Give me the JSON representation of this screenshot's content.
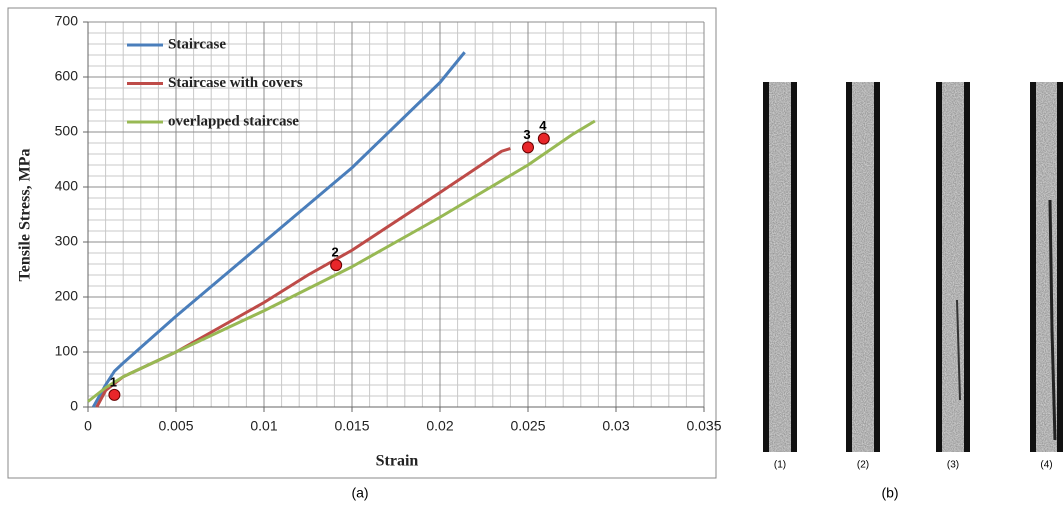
{
  "chart_data": {
    "type": "line",
    "xlabel": "Strain",
    "ylabel": "Tensile Stress, MPa",
    "xlim": [
      0,
      0.035
    ],
    "ylim": [
      0,
      700
    ],
    "xticks": [
      0,
      0.005,
      0.01,
      0.015,
      0.02,
      0.025,
      0.03,
      0.035
    ],
    "yticks": [
      0,
      100,
      200,
      300,
      400,
      500,
      600,
      700
    ],
    "grid": true,
    "legend": "upper-left",
    "series": [
      {
        "name": "Staircase",
        "color": "#4a7ebb",
        "x": [
          0.0003,
          0.001,
          0.0015,
          0.002,
          0.005,
          0.01,
          0.015,
          0.02,
          0.0214
        ],
        "values": [
          0,
          40,
          65,
          80,
          165,
          300,
          435,
          590,
          645
        ]
      },
      {
        "name": "Staircase with covers",
        "color": "#be4b48",
        "x": [
          0.0005,
          0.001,
          0.002,
          0.005,
          0.01,
          0.0125,
          0.015,
          0.02,
          0.0235,
          0.024
        ],
        "values": [
          0,
          30,
          55,
          100,
          190,
          240,
          285,
          390,
          465,
          470
        ]
      },
      {
        "name": "overlapped staircase",
        "color": "#98b954",
        "x": [
          0,
          0.001,
          0.002,
          0.005,
          0.01,
          0.015,
          0.02,
          0.025,
          0.0275,
          0.0288
        ],
        "values": [
          10,
          35,
          55,
          100,
          175,
          255,
          345,
          440,
          495,
          520
        ]
      }
    ],
    "markers": [
      {
        "label": "1",
        "x": 0.0015,
        "y": 22
      },
      {
        "label": "2",
        "x": 0.0141,
        "y": 258
      },
      {
        "label": "3",
        "x": 0.025,
        "y": 472
      },
      {
        "label": "4",
        "x": 0.0259,
        "y": 488
      }
    ]
  },
  "captions": {
    "a": "(a)",
    "b": "(b)"
  },
  "panel_b": {
    "labels": [
      "(1)",
      "(2)",
      "(3)",
      "(4)"
    ]
  }
}
